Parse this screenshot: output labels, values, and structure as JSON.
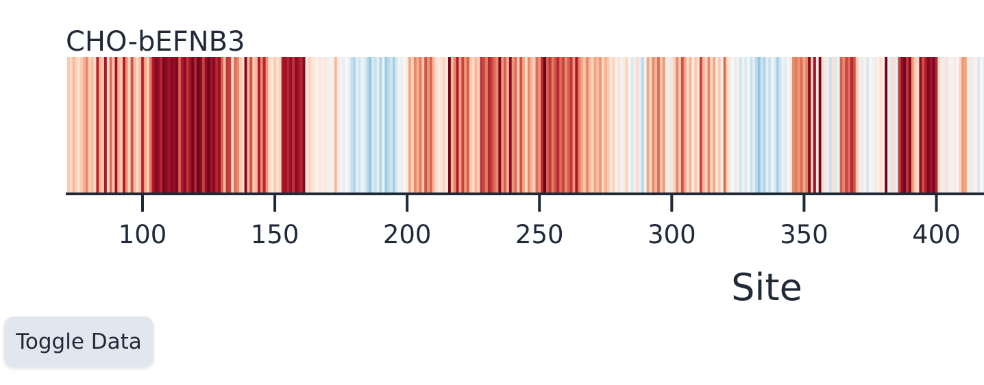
{
  "chart_data": {
    "type": "heatmap",
    "title": "CHO-bEFNB3",
    "xlabel": "Site",
    "ylabel": "",
    "xlim": [
      71,
      418
    ],
    "xticks": [
      100,
      150,
      200,
      250,
      300,
      350,
      400
    ],
    "colormap": "RdBu_r",
    "color_range": [
      -1,
      1
    ],
    "sites": [
      {
        "x": 72,
        "v": 0.15
      },
      {
        "x": 73,
        "v": 0.1
      },
      {
        "x": 74,
        "v": 0.2
      },
      {
        "x": 75,
        "v": 0.12
      },
      {
        "x": 76,
        "v": 0.08
      },
      {
        "x": 77,
        "v": 0.15
      },
      {
        "x": 78,
        "v": 0.22
      },
      {
        "x": 79,
        "v": 0.35
      },
      {
        "x": 80,
        "v": 0.12
      },
      {
        "x": 81,
        "v": 0.18
      },
      {
        "x": 82,
        "v": 0.1
      },
      {
        "x": 83,
        "v": 0.72
      },
      {
        "x": 84,
        "v": 0.2
      },
      {
        "x": 85,
        "v": 0.15
      },
      {
        "x": 86,
        "v": 0.78
      },
      {
        "x": 87,
        "v": 0.1
      },
      {
        "x": 88,
        "v": 0.45
      },
      {
        "x": 89,
        "v": 0.15
      },
      {
        "x": 90,
        "v": 0.82
      },
      {
        "x": 91,
        "v": 0.2
      },
      {
        "x": 92,
        "v": 0.15
      },
      {
        "x": 93,
        "v": 0.75
      },
      {
        "x": 94,
        "v": 0.3
      },
      {
        "x": 95,
        "v": 0.12
      },
      {
        "x": 96,
        "v": 0.55
      },
      {
        "x": 97,
        "v": 0.2
      },
      {
        "x": 98,
        "v": 0.1
      },
      {
        "x": 99,
        "v": 0.18
      },
      {
        "x": 100,
        "v": 0.7
      },
      {
        "x": 101,
        "v": 0.25
      },
      {
        "x": 102,
        "v": 0.12
      },
      {
        "x": 103,
        "v": 0.4
      },
      {
        "x": 104,
        "v": 0.75
      },
      {
        "x": 105,
        "v": 0.9
      },
      {
        "x": 106,
        "v": 0.85
      },
      {
        "x": 107,
        "v": 0.7
      },
      {
        "x": 108,
        "v": 0.95
      },
      {
        "x": 109,
        "v": 0.88
      },
      {
        "x": 110,
        "v": 0.8
      },
      {
        "x": 111,
        "v": 0.9
      },
      {
        "x": 112,
        "v": 0.85
      },
      {
        "x": 113,
        "v": 0.92
      },
      {
        "x": 114,
        "v": 0.5
      },
      {
        "x": 115,
        "v": 0.75
      },
      {
        "x": 116,
        "v": 0.88
      },
      {
        "x": 117,
        "v": 0.65
      },
      {
        "x": 118,
        "v": 0.8
      },
      {
        "x": 119,
        "v": 0.95
      },
      {
        "x": 120,
        "v": 0.7
      },
      {
        "x": 121,
        "v": 1.0
      },
      {
        "x": 122,
        "v": 0.9
      },
      {
        "x": 123,
        "v": 0.6
      },
      {
        "x": 124,
        "v": 0.85
      },
      {
        "x": 125,
        "v": 0.98
      },
      {
        "x": 126,
        "v": 0.8
      },
      {
        "x": 127,
        "v": 0.9
      },
      {
        "x": 128,
        "v": 0.7
      },
      {
        "x": 129,
        "v": 0.85
      },
      {
        "x": 130,
        "v": 0.5
      },
      {
        "x": 131,
        "v": 0.2
      },
      {
        "x": 132,
        "v": 0.65
      },
      {
        "x": 133,
        "v": 0.6
      },
      {
        "x": 134,
        "v": 0.1
      },
      {
        "x": 135,
        "v": 0.45
      },
      {
        "x": 136,
        "v": 0.35
      },
      {
        "x": 137,
        "v": 0.15
      },
      {
        "x": 138,
        "v": 0.1
      },
      {
        "x": 139,
        "v": 0.92
      },
      {
        "x": 140,
        "v": 0.2
      },
      {
        "x": 141,
        "v": 0.55
      },
      {
        "x": 142,
        "v": 0.15
      },
      {
        "x": 143,
        "v": 0.2
      },
      {
        "x": 144,
        "v": 0.75
      },
      {
        "x": 145,
        "v": 0.35
      },
      {
        "x": 146,
        "v": 0.72
      },
      {
        "x": 147,
        "v": 0.3
      },
      {
        "x": 148,
        "v": 0.1
      },
      {
        "x": 149,
        "v": 0.05
      },
      {
        "x": 150,
        "v": 0.15
      },
      {
        "x": 151,
        "v": 0.08
      },
      {
        "x": 152,
        "v": 0.12
      },
      {
        "x": 153,
        "v": 0.78
      },
      {
        "x": 154,
        "v": 0.82
      },
      {
        "x": 155,
        "v": 0.7
      },
      {
        "x": 156,
        "v": 0.85
      },
      {
        "x": 157,
        "v": 0.65
      },
      {
        "x": 158,
        "v": 0.88
      },
      {
        "x": 159,
        "v": 0.8
      },
      {
        "x": 160,
        "v": 0.7
      },
      {
        "x": 161,
        "v": 0.9
      },
      {
        "x": 162,
        "v": 0.05
      },
      {
        "x": 163,
        "v": 0.12
      },
      {
        "x": 164,
        "v": 0.08
      },
      {
        "x": 165,
        "v": 0.05
      },
      {
        "x": 166,
        "v": 0.02
      },
      {
        "x": 167,
        "v": 0.06
      },
      {
        "x": 168,
        "v": 0.03
      },
      {
        "x": 169,
        "v": 0.05
      },
      {
        "x": 170,
        "v": 0.04
      },
      {
        "x": 171,
        "v": -0.02
      },
      {
        "x": 172,
        "v": 0.03
      },
      {
        "x": 173,
        "v": 0.2
      },
      {
        "x": 174,
        "v": 0.05
      },
      {
        "x": 175,
        "v": 0.02
      },
      {
        "x": 176,
        "v": -0.05
      },
      {
        "x": 177,
        "v": 0.0
      },
      {
        "x": 178,
        "v": -0.03
      },
      {
        "x": 179,
        "v": -0.12
      },
      {
        "x": 180,
        "v": -0.18
      },
      {
        "x": 181,
        "v": -0.05
      },
      {
        "x": 182,
        "v": -0.1
      },
      {
        "x": 183,
        "v": -0.02
      },
      {
        "x": 184,
        "v": -0.06
      },
      {
        "x": 185,
        "v": -0.15
      },
      {
        "x": 186,
        "v": -0.25
      },
      {
        "x": 187,
        "v": -0.08
      },
      {
        "x": 188,
        "v": -0.12
      },
      {
        "x": 189,
        "v": -0.05
      },
      {
        "x": 190,
        "v": -0.18
      },
      {
        "x": 191,
        "v": -0.03
      },
      {
        "x": 192,
        "v": -0.22
      },
      {
        "x": 193,
        "v": -0.15
      },
      {
        "x": 194,
        "v": -0.1
      },
      {
        "x": 195,
        "v": -0.2
      },
      {
        "x": 196,
        "v": -0.08
      },
      {
        "x": 197,
        "v": 0.02
      },
      {
        "x": 198,
        "v": -0.04
      },
      {
        "x": 199,
        "v": 0.0
      },
      {
        "x": 200,
        "v": 0.05
      },
      {
        "x": 201,
        "v": 0.25
      },
      {
        "x": 202,
        "v": 0.12
      },
      {
        "x": 203,
        "v": 0.35
      },
      {
        "x": 204,
        "v": 0.22
      },
      {
        "x": 205,
        "v": 0.4
      },
      {
        "x": 206,
        "v": 0.15
      },
      {
        "x": 207,
        "v": 0.55
      },
      {
        "x": 208,
        "v": 0.3
      },
      {
        "x": 209,
        "v": 0.48
      },
      {
        "x": 210,
        "v": 0.18
      },
      {
        "x": 211,
        "v": 0.1
      },
      {
        "x": 212,
        "v": 0.05
      },
      {
        "x": 213,
        "v": 0.08
      },
      {
        "x": 214,
        "v": 0.12
      },
      {
        "x": 215,
        "v": 0.05
      },
      {
        "x": 216,
        "v": 0.95
      },
      {
        "x": 217,
        "v": 0.2
      },
      {
        "x": 218,
        "v": 0.35
      },
      {
        "x": 219,
        "v": 0.75
      },
      {
        "x": 220,
        "v": 0.25
      },
      {
        "x": 221,
        "v": 0.6
      },
      {
        "x": 222,
        "v": 0.3
      },
      {
        "x": 223,
        "v": 0.5
      },
      {
        "x": 224,
        "v": 0.15
      },
      {
        "x": 225,
        "v": 0.1
      },
      {
        "x": 226,
        "v": 0.2
      },
      {
        "x": 227,
        "v": 0.12
      },
      {
        "x": 228,
        "v": 0.65
      },
      {
        "x": 229,
        "v": 0.58
      },
      {
        "x": 230,
        "v": 0.4
      },
      {
        "x": 231,
        "v": 0.7
      },
      {
        "x": 232,
        "v": 0.6
      },
      {
        "x": 233,
        "v": 0.45
      },
      {
        "x": 234,
        "v": 0.35
      },
      {
        "x": 235,
        "v": 0.92
      },
      {
        "x": 236,
        "v": 0.3
      },
      {
        "x": 237,
        "v": 0.5
      },
      {
        "x": 238,
        "v": 0.2
      },
      {
        "x": 239,
        "v": 0.88
      },
      {
        "x": 240,
        "v": 0.3
      },
      {
        "x": 241,
        "v": 0.45
      },
      {
        "x": 242,
        "v": 0.15
      },
      {
        "x": 243,
        "v": 0.55
      },
      {
        "x": 244,
        "v": 0.25
      },
      {
        "x": 245,
        "v": 0.1
      },
      {
        "x": 246,
        "v": 0.35
      },
      {
        "x": 247,
        "v": 0.2
      },
      {
        "x": 248,
        "v": 0.12
      },
      {
        "x": 249,
        "v": 0.45
      },
      {
        "x": 250,
        "v": 0.3
      },
      {
        "x": 251,
        "v": 0.7
      },
      {
        "x": 252,
        "v": 0.98
      },
      {
        "x": 253,
        "v": 0.5
      },
      {
        "x": 254,
        "v": 0.65
      },
      {
        "x": 255,
        "v": 0.4
      },
      {
        "x": 256,
        "v": 0.55
      },
      {
        "x": 257,
        "v": 0.7
      },
      {
        "x": 258,
        "v": 0.45
      },
      {
        "x": 259,
        "v": 0.6
      },
      {
        "x": 260,
        "v": 0.35
      },
      {
        "x": 261,
        "v": 0.5
      },
      {
        "x": 262,
        "v": 0.65
      },
      {
        "x": 263,
        "v": 0.3
      },
      {
        "x": 264,
        "v": 0.78
      },
      {
        "x": 265,
        "v": 0.4
      },
      {
        "x": 266,
        "v": 0.25
      },
      {
        "x": 267,
        "v": 0.15
      },
      {
        "x": 268,
        "v": 0.35
      },
      {
        "x": 269,
        "v": 0.2
      },
      {
        "x": 270,
        "v": 0.12
      },
      {
        "x": 271,
        "v": 0.25
      },
      {
        "x": 272,
        "v": 0.18
      },
      {
        "x": 273,
        "v": 0.3
      },
      {
        "x": 274,
        "v": 0.1
      },
      {
        "x": 275,
        "v": 0.22
      },
      {
        "x": 276,
        "v": 0.15
      },
      {
        "x": 277,
        "v": 0.05
      },
      {
        "x": 278,
        "v": 0.12
      },
      {
        "x": 279,
        "v": 0.02
      },
      {
        "x": 280,
        "v": 0.08
      },
      {
        "x": 281,
        "v": -0.02
      },
      {
        "x": 282,
        "v": 0.05
      },
      {
        "x": 283,
        "v": 0.12
      },
      {
        "x": 284,
        "v": 0.0
      },
      {
        "x": 285,
        "v": -0.08
      },
      {
        "x": 286,
        "v": 0.04
      },
      {
        "x": 287,
        "v": 0.1
      },
      {
        "x": 288,
        "v": -0.05
      },
      {
        "x": 289,
        "v": -0.15
      },
      {
        "x": 290,
        "v": -0.02
      },
      {
        "x": 291,
        "v": 0.25
      },
      {
        "x": 292,
        "v": 0.1
      },
      {
        "x": 293,
        "v": 0.35
      },
      {
        "x": 294,
        "v": 0.2
      },
      {
        "x": 295,
        "v": 0.45
      },
      {
        "x": 296,
        "v": 0.15
      },
      {
        "x": 297,
        "v": 0.3
      },
      {
        "x": 298,
        "v": 0.05
      },
      {
        "x": 299,
        "v": -0.05
      },
      {
        "x": 300,
        "v": 0.08
      },
      {
        "x": 301,
        "v": 0.12
      },
      {
        "x": 302,
        "v": 0.35
      },
      {
        "x": 303,
        "v": 0.15
      },
      {
        "x": 304,
        "v": 0.55
      },
      {
        "x": 305,
        "v": 0.25
      },
      {
        "x": 306,
        "v": 0.1
      },
      {
        "x": 307,
        "v": 0.2
      },
      {
        "x": 308,
        "v": 0.05
      },
      {
        "x": 309,
        "v": 0.15
      },
      {
        "x": 310,
        "v": 0.08
      },
      {
        "x": 311,
        "v": 0.6
      },
      {
        "x": 312,
        "v": 0.2
      },
      {
        "x": 313,
        "v": 0.12
      },
      {
        "x": 314,
        "v": 0.35
      },
      {
        "x": 315,
        "v": 0.1
      },
      {
        "x": 316,
        "v": 0.25
      },
      {
        "x": 317,
        "v": 0.05
      },
      {
        "x": 318,
        "v": 0.15
      },
      {
        "x": 319,
        "v": 0.02
      },
      {
        "x": 320,
        "v": 0.45
      },
      {
        "x": 321,
        "v": 0.1
      },
      {
        "x": 322,
        "v": 0.05
      },
      {
        "x": 323,
        "v": 0.0
      },
      {
        "x": 324,
        "v": -0.05
      },
      {
        "x": 325,
        "v": 0.02
      },
      {
        "x": 326,
        "v": -0.1
      },
      {
        "x": 327,
        "v": -0.03
      },
      {
        "x": 328,
        "v": -0.08
      },
      {
        "x": 329,
        "v": 0.0
      },
      {
        "x": 330,
        "v": -0.12
      },
      {
        "x": 331,
        "v": -0.05
      },
      {
        "x": 332,
        "v": -0.15
      },
      {
        "x": 333,
        "v": -0.25
      },
      {
        "x": 334,
        "v": -0.1
      },
      {
        "x": 335,
        "v": -0.18
      },
      {
        "x": 336,
        "v": -0.05
      },
      {
        "x": 337,
        "v": -0.12
      },
      {
        "x": 338,
        "v": -0.02
      },
      {
        "x": 339,
        "v": -0.08
      },
      {
        "x": 340,
        "v": -0.2
      },
      {
        "x": 341,
        "v": -0.1
      },
      {
        "x": 342,
        "v": -0.03
      },
      {
        "x": 343,
        "v": -0.06
      },
      {
        "x": 344,
        "v": 0.0
      },
      {
        "x": 345,
        "v": 0.05
      },
      {
        "x": 346,
        "v": 0.35
      },
      {
        "x": 347,
        "v": 0.4
      },
      {
        "x": 348,
        "v": 0.3
      },
      {
        "x": 349,
        "v": 0.45
      },
      {
        "x": 350,
        "v": 0.25
      },
      {
        "x": 351,
        "v": 0.38
      },
      {
        "x": 352,
        "v": 0.92
      },
      {
        "x": 353,
        "v": 0.15
      },
      {
        "x": 354,
        "v": 0.85
      },
      {
        "x": 355,
        "v": 0.05
      },
      {
        "x": 356,
        "v": 0.95
      },
      {
        "x": 357,
        "v": 0.1
      },
      {
        "x": 358,
        "v": -0.05
      },
      {
        "x": 359,
        "v": 0.05
      },
      {
        "x": 360,
        "v": -0.12
      },
      {
        "x": 361,
        "v": 0.08
      },
      {
        "x": 362,
        "v": -0.08
      },
      {
        "x": 363,
        "v": 0.02
      },
      {
        "x": 364,
        "v": 0.5
      },
      {
        "x": 365,
        "v": 0.35
      },
      {
        "x": 366,
        "v": 0.6
      },
      {
        "x": 367,
        "v": 0.45
      },
      {
        "x": 368,
        "v": 0.7
      },
      {
        "x": 369,
        "v": 0.55
      },
      {
        "x": 370,
        "v": 0.15
      },
      {
        "x": 371,
        "v": 0.05
      },
      {
        "x": 372,
        "v": -0.05
      },
      {
        "x": 373,
        "v": 0.02
      },
      {
        "x": 374,
        "v": -0.08
      },
      {
        "x": 375,
        "v": 0.0
      },
      {
        "x": 376,
        "v": -0.03
      },
      {
        "x": 377,
        "v": 0.05
      },
      {
        "x": 378,
        "v": 0.02
      },
      {
        "x": 379,
        "v": 0.08
      },
      {
        "x": 380,
        "v": 0.03
      },
      {
        "x": 381,
        "v": 0.98
      },
      {
        "x": 382,
        "v": 0.05
      },
      {
        "x": 383,
        "v": -0.08
      },
      {
        "x": 384,
        "v": 0.1
      },
      {
        "x": 385,
        "v": -0.05
      },
      {
        "x": 386,
        "v": 0.6
      },
      {
        "x": 387,
        "v": 0.85
      },
      {
        "x": 388,
        "v": 0.95
      },
      {
        "x": 389,
        "v": 0.65
      },
      {
        "x": 390,
        "v": 0.9
      },
      {
        "x": 391,
        "v": 0.3
      },
      {
        "x": 392,
        "v": 0.15
      },
      {
        "x": 393,
        "v": 0.1
      },
      {
        "x": 394,
        "v": 0.85
      },
      {
        "x": 395,
        "v": 0.55
      },
      {
        "x": 396,
        "v": 0.75
      },
      {
        "x": 397,
        "v": 0.92
      },
      {
        "x": 398,
        "v": 0.8
      },
      {
        "x": 399,
        "v": 0.95
      },
      {
        "x": 400,
        "v": 0.7
      },
      {
        "x": 401,
        "v": 0.1
      },
      {
        "x": 402,
        "v": 0.05
      },
      {
        "x": 403,
        "v": -0.05
      },
      {
        "x": 404,
        "v": 0.08
      },
      {
        "x": 405,
        "v": 0.02
      },
      {
        "x": 406,
        "v": -0.02
      },
      {
        "x": 407,
        "v": 0.05
      },
      {
        "x": 408,
        "v": 0.0
      },
      {
        "x": 409,
        "v": 0.12
      },
      {
        "x": 410,
        "v": 0.3
      },
      {
        "x": 411,
        "v": 0.25
      },
      {
        "x": 412,
        "v": 0.05
      },
      {
        "x": 413,
        "v": -0.05
      },
      {
        "x": 414,
        "v": 0.04
      },
      {
        "x": 415,
        "v": 0.02
      },
      {
        "x": 416,
        "v": -0.08
      },
      {
        "x": 417,
        "v": 0.0
      },
      {
        "x": 418,
        "v": -0.04
      }
    ]
  },
  "controls": {
    "toggle_label": "Toggle Data"
  }
}
